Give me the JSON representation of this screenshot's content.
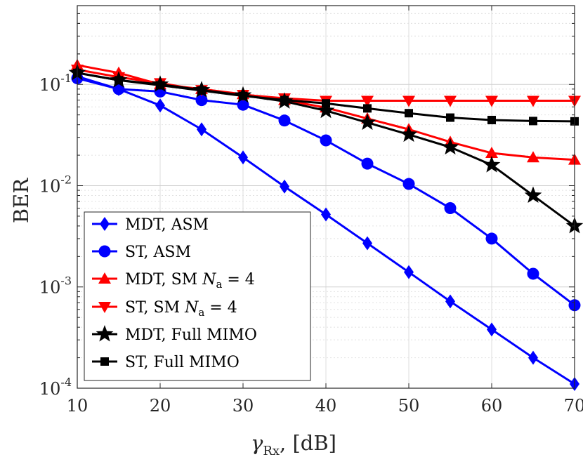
{
  "chart_data": {
    "type": "line",
    "xlabel": "γRx, [dB]",
    "xlabel_main": "γ",
    "xlabel_sub": "Rx",
    "xlabel_rest": ", [dB]",
    "ylabel": "BER",
    "xlim": [
      10,
      70
    ],
    "ylim": [
      0.0001,
      0.6
    ],
    "yscale": "log",
    "grid": true,
    "legend_position": "bottom-left",
    "x_ticks": [
      "10",
      "20",
      "30",
      "40",
      "50",
      "60",
      "70"
    ],
    "y_ticks": [
      {
        "base": "10",
        "exp": "-1",
        "value": 0.1
      },
      {
        "base": "10",
        "exp": "-2",
        "value": 0.01
      },
      {
        "base": "10",
        "exp": "-3",
        "value": 0.001
      },
      {
        "base": "10",
        "exp": "-4",
        "value": 0.0001
      }
    ],
    "series": [
      {
        "name": "MDT, ASM",
        "color": "#0000ff",
        "marker": "diamond",
        "x": [
          10,
          15,
          20,
          25,
          30,
          35,
          40,
          45,
          50,
          55,
          60,
          65,
          70
        ],
        "values": [
          0.12,
          0.09,
          0.062,
          0.036,
          0.019,
          0.0098,
          0.0052,
          0.0027,
          0.0014,
          0.00072,
          0.00038,
          0.0002,
          0.00011
        ]
      },
      {
        "name": "ST, ASM",
        "color": "#0000ff",
        "marker": "circle",
        "x": [
          10,
          15,
          20,
          25,
          30,
          35,
          40,
          45,
          50,
          55,
          60,
          65,
          70
        ],
        "values": [
          0.115,
          0.09,
          0.085,
          0.07,
          0.063,
          0.044,
          0.028,
          0.0165,
          0.0104,
          0.006,
          0.003,
          0.00135,
          0.00066
        ]
      },
      {
        "name": "MDT, SM Na = 4",
        "color": "#ff0000",
        "marker": "triangle-up",
        "x": [
          10,
          15,
          20,
          25,
          30,
          35,
          40,
          45,
          50,
          55,
          60,
          65,
          70
        ],
        "values": [
          0.155,
          0.13,
          0.1,
          0.09,
          0.08,
          0.07,
          0.059,
          0.046,
          0.036,
          0.027,
          0.021,
          0.019,
          0.018
        ]
      },
      {
        "name": "ST, SM Na = 4",
        "color": "#ff0000",
        "marker": "triangle-down",
        "x": [
          10,
          15,
          20,
          25,
          30,
          35,
          40,
          45,
          50,
          55,
          60,
          65,
          70
        ],
        "values": [
          0.14,
          0.118,
          0.103,
          0.088,
          0.079,
          0.073,
          0.069,
          0.069,
          0.069,
          0.069,
          0.069,
          0.069,
          0.069
        ]
      },
      {
        "name": "MDT, Full MIMO",
        "color": "#000000",
        "marker": "star",
        "x": [
          10,
          15,
          20,
          25,
          30,
          35,
          40,
          45,
          50,
          55,
          60,
          65,
          70
        ],
        "values": [
          0.13,
          0.11,
          0.1,
          0.088,
          0.078,
          0.068,
          0.055,
          0.042,
          0.032,
          0.024,
          0.016,
          0.008,
          0.004
        ]
      },
      {
        "name": "ST, Full MIMO",
        "color": "#000000",
        "marker": "square",
        "x": [
          10,
          15,
          20,
          25,
          30,
          35,
          40,
          45,
          50,
          55,
          60,
          65,
          70
        ],
        "values": [
          0.13,
          0.11,
          0.098,
          0.087,
          0.077,
          0.07,
          0.065,
          0.058,
          0.052,
          0.047,
          0.0445,
          0.0435,
          0.0432
        ]
      }
    ],
    "legend": [
      {
        "label": "MDT, ASM"
      },
      {
        "label": "ST, ASM"
      },
      {
        "label": "MDT, SM ",
        "math_main": "N",
        "math_sub": "a",
        "math_rest": " = 4"
      },
      {
        "label": "ST, SM ",
        "math_main": "N",
        "math_sub": "a",
        "math_rest": " = 4"
      },
      {
        "label": "MDT, Full MIMO"
      },
      {
        "label": "ST, Full MIMO"
      }
    ]
  }
}
